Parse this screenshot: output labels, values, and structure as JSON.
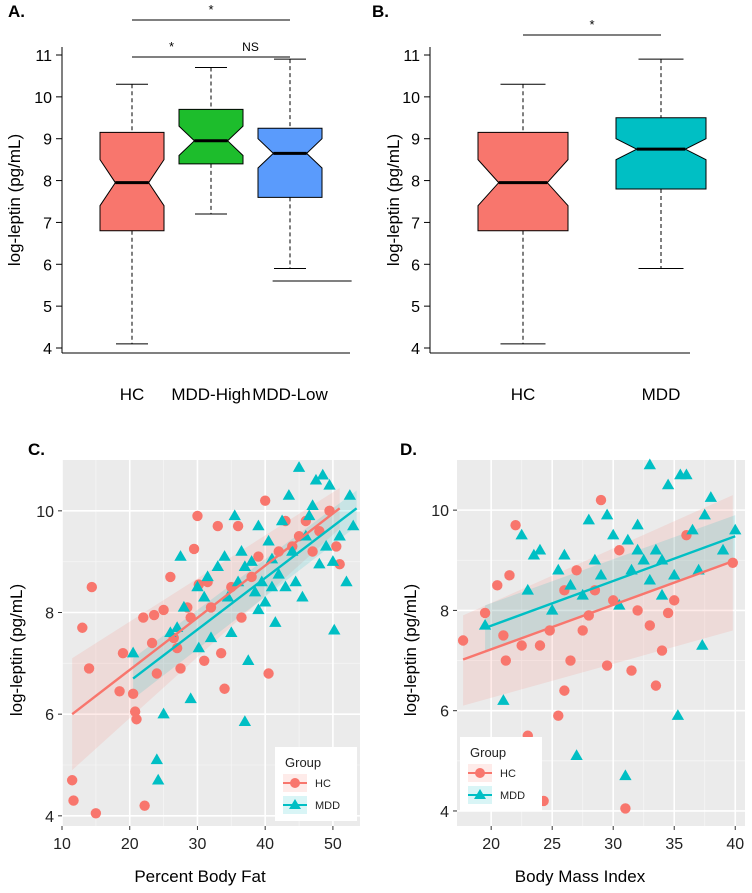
{
  "colors": {
    "hc": "#f8766d",
    "mdd_high": "#1dbd2c",
    "mdd_low": "#5a9bfc",
    "mdd": "#00bfc4",
    "panel_bg": "#ebebeb"
  },
  "chart_data": [
    {
      "panel": "A.",
      "type": "boxplot",
      "ylabel": "log-leptin (pg/mL)",
      "ylim": [
        4,
        11
      ],
      "yticks": [
        4,
        5,
        6,
        7,
        8,
        9,
        10,
        11
      ],
      "categories": [
        "HC",
        "MDD-High",
        "MDD-Low"
      ],
      "boxes": [
        {
          "name": "HC",
          "color": "#f8766d",
          "min": 4.1,
          "q1": 6.8,
          "median": 7.95,
          "q3": 9.15,
          "max": 10.3,
          "notch_lo": 7.4,
          "notch_hi": 8.5
        },
        {
          "name": "MDD-High",
          "color": "#1dbd2c",
          "min": 7.2,
          "q1": 8.4,
          "median": 8.95,
          "q3": 9.7,
          "max": 10.7,
          "notch_lo": 8.6,
          "notch_hi": 9.3
        },
        {
          "name": "MDD-Low",
          "color": "#5a9bfc",
          "min": 5.9,
          "q1": 7.6,
          "median": 8.65,
          "q3": 9.25,
          "max": 10.9,
          "notch_lo": 8.3,
          "notch_hi": 9.0
        }
      ],
      "extra_line": {
        "y": 5.6,
        "from": 1.78,
        "to": 2.78
      },
      "significance": [
        {
          "from": 0,
          "to": 1,
          "level": 1,
          "label": "*"
        },
        {
          "from": 1,
          "to": 2,
          "level": 1,
          "label": "NS"
        },
        {
          "from": 0,
          "to": 2,
          "level": 2,
          "label": "*"
        }
      ]
    },
    {
      "panel": "B.",
      "type": "boxplot",
      "ylabel": "log-leptin (pg/mL)",
      "ylim": [
        4,
        11
      ],
      "yticks": [
        4,
        5,
        6,
        7,
        8,
        9,
        10,
        11
      ],
      "categories": [
        "HC",
        "MDD"
      ],
      "boxes": [
        {
          "name": "HC",
          "color": "#f8766d",
          "min": 4.1,
          "q1": 6.8,
          "median": 7.95,
          "q3": 9.15,
          "max": 10.3,
          "notch_lo": 7.4,
          "notch_hi": 8.5
        },
        {
          "name": "MDD",
          "color": "#00bfc4",
          "min": 5.9,
          "q1": 7.8,
          "median": 8.75,
          "q3": 9.5,
          "max": 10.9,
          "notch_lo": 8.5,
          "notch_hi": 9.0
        }
      ],
      "significance": [
        {
          "from": 0,
          "to": 1,
          "level": 1,
          "label": "*"
        }
      ]
    },
    {
      "panel": "C.",
      "type": "scatter",
      "xlabel": "Percent Body Fat",
      "ylabel": "log-leptin (pg/mL)",
      "xlim": [
        10,
        54
      ],
      "ylim": [
        3.8,
        11
      ],
      "xticks": [
        10,
        20,
        30,
        40,
        50
      ],
      "yticks": [
        4,
        6,
        8,
        10
      ],
      "legend": {
        "title": "Group",
        "position": "bottom-right",
        "entries": [
          "HC",
          "MDD"
        ]
      },
      "series": [
        {
          "name": "HC",
          "color": "#f8766d",
          "marker": "circle",
          "points": [
            [
              11.5,
              4.7
            ],
            [
              11.7,
              4.3
            ],
            [
              13,
              7.7
            ],
            [
              14,
              6.9
            ],
            [
              14.4,
              8.5
            ],
            [
              15,
              4.05
            ],
            [
              18.5,
              6.45
            ],
            [
              19,
              7.2
            ],
            [
              20.5,
              6.4
            ],
            [
              20.8,
              6.05
            ],
            [
              21,
              5.9
            ],
            [
              22,
              7.9
            ],
            [
              22.2,
              4.2
            ],
            [
              23.3,
              7.4
            ],
            [
              23.6,
              7.95
            ],
            [
              24,
              6.8
            ],
            [
              25,
              8.05
            ],
            [
              26,
              8.7
            ],
            [
              26.5,
              7.5
            ],
            [
              27,
              7.3
            ],
            [
              27.5,
              6.9
            ],
            [
              28.5,
              8.1
            ],
            [
              29,
              7.9
            ],
            [
              29.5,
              9.25
            ],
            [
              30,
              9.9
            ],
            [
              30.2,
              8.55
            ],
            [
              31,
              7.05
            ],
            [
              31.5,
              8.6
            ],
            [
              32,
              8.1
            ],
            [
              33,
              9.7
            ],
            [
              33.5,
              7.2
            ],
            [
              34,
              6.5
            ],
            [
              35,
              8.5
            ],
            [
              36,
              9.7
            ],
            [
              36.5,
              7.9
            ],
            [
              38,
              8.7
            ],
            [
              39,
              9.1
            ],
            [
              40,
              10.2
            ],
            [
              40.5,
              6.8
            ],
            [
              42,
              9.2
            ],
            [
              43,
              9.8
            ],
            [
              44,
              9.3
            ],
            [
              45,
              9.5
            ],
            [
              46,
              9.8
            ],
            [
              47,
              9.2
            ],
            [
              48,
              9.6
            ],
            [
              49.5,
              10.0
            ],
            [
              50.5,
              9.3
            ],
            [
              51,
              8.95
            ]
          ],
          "fit": {
            "x": [
              11.5,
              51
            ],
            "y": [
              6.0,
              10.05
            ],
            "ci_lo": [
              4.9,
              9.65
            ],
            "ci_hi": [
              7.1,
              10.45
            ]
          }
        },
        {
          "name": "MDD",
          "color": "#00bfc4",
          "marker": "triangle",
          "points": [
            [
              20.5,
              7.2
            ],
            [
              24,
              5.1
            ],
            [
              24.2,
              4.7
            ],
            [
              25,
              6.0
            ],
            [
              26,
              7.6
            ],
            [
              27,
              7.7
            ],
            [
              27.5,
              9.1
            ],
            [
              28,
              8.1
            ],
            [
              29,
              6.3
            ],
            [
              30,
              8.5
            ],
            [
              30.2,
              7.3
            ],
            [
              31,
              8.3
            ],
            [
              31.5,
              8.7
            ],
            [
              32,
              7.5
            ],
            [
              33,
              8.9
            ],
            [
              34,
              9.1
            ],
            [
              34.5,
              8.3
            ],
            [
              35,
              7.6
            ],
            [
              35.5,
              9.9
            ],
            [
              36,
              8.6
            ],
            [
              36.5,
              9.2
            ],
            [
              37,
              5.85
            ],
            [
              37,
              8.9
            ],
            [
              37.5,
              7.05
            ],
            [
              38,
              9.0
            ],
            [
              38.5,
              8.4
            ],
            [
              39,
              9.7
            ],
            [
              39,
              8.05
            ],
            [
              39.5,
              8.6
            ],
            [
              40,
              8.2
            ],
            [
              40.5,
              9.4
            ],
            [
              41,
              8.5
            ],
            [
              41,
              9.05
            ],
            [
              41.5,
              7.8
            ],
            [
              42,
              8.75
            ],
            [
              42.5,
              9.8
            ],
            [
              43,
              8.5
            ],
            [
              43.5,
              10.3
            ],
            [
              44,
              9.2
            ],
            [
              44.5,
              8.6
            ],
            [
              45,
              10.85
            ],
            [
              45.5,
              8.3
            ],
            [
              46,
              9.5
            ],
            [
              46.5,
              9.9
            ],
            [
              47,
              10.1
            ],
            [
              47.5,
              10.6
            ],
            [
              48,
              8.95
            ],
            [
              48.5,
              10.7
            ],
            [
              49,
              9.3
            ],
            [
              49.5,
              10.5
            ],
            [
              50,
              9.0
            ],
            [
              50.2,
              7.65
            ],
            [
              51,
              9.5
            ],
            [
              52,
              8.6
            ],
            [
              53,
              9.7
            ],
            [
              52.5,
              10.3
            ]
          ],
          "fit": {
            "x": [
              20.5,
              53.5
            ],
            "y": [
              6.7,
              10.05
            ],
            "ci_lo": [
              6.3,
              9.7
            ],
            "ci_hi": [
              7.1,
              10.4
            ]
          }
        }
      ]
    },
    {
      "panel": "D.",
      "type": "scatter",
      "xlabel": "Body Mass Index",
      "ylabel": "log-leptin (pg/mL)",
      "xlim": [
        17.2,
        40.8
      ],
      "ylim": [
        3.7,
        11
      ],
      "xticks": [
        20,
        25,
        30,
        35,
        40
      ],
      "yticks": [
        4,
        6,
        8,
        10
      ],
      "legend": {
        "title": "Group",
        "position": "bottom-left",
        "entries": [
          "HC",
          "MDD"
        ]
      },
      "series": [
        {
          "name": "HC",
          "color": "#f8766d",
          "marker": "circle",
          "points": [
            [
              17.7,
              7.4
            ],
            [
              19.5,
              7.95
            ],
            [
              20.5,
              8.5
            ],
            [
              21,
              7.5
            ],
            [
              21.2,
              7.0
            ],
            [
              21.5,
              8.7
            ],
            [
              22,
              9.7
            ],
            [
              22.5,
              7.3
            ],
            [
              23,
              5.5
            ],
            [
              23.5,
              4.7
            ],
            [
              24,
              7.3
            ],
            [
              24.3,
              4.2
            ],
            [
              24.8,
              7.6
            ],
            [
              25.5,
              5.9
            ],
            [
              26,
              6.4
            ],
            [
              26,
              8.4
            ],
            [
              26.5,
              7.0
            ],
            [
              27,
              8.8
            ],
            [
              27.5,
              7.6
            ],
            [
              28,
              7.9
            ],
            [
              28.5,
              8.4
            ],
            [
              29,
              10.2
            ],
            [
              29.5,
              6.9
            ],
            [
              30,
              8.2
            ],
            [
              30.5,
              9.2
            ],
            [
              31,
              4.05
            ],
            [
              31.5,
              6.8
            ],
            [
              32,
              8.0
            ],
            [
              33,
              7.7
            ],
            [
              33.5,
              6.5
            ],
            [
              34,
              7.2
            ],
            [
              34.5,
              7.95
            ],
            [
              35,
              8.2
            ],
            [
              36,
              9.5
            ],
            [
              39.8,
              8.95
            ]
          ],
          "fit": {
            "x": [
              17.7,
              39.8
            ],
            "y": [
              7.02,
              8.98
            ],
            "ci_lo": [
              6.1,
              7.6
            ],
            "ci_hi": [
              7.9,
              10.3
            ]
          }
        },
        {
          "name": "MDD",
          "color": "#00bfc4",
          "marker": "triangle",
          "points": [
            [
              19.5,
              7.7
            ],
            [
              21,
              6.2
            ],
            [
              22.5,
              9.5
            ],
            [
              23,
              8.4
            ],
            [
              23.5,
              9.1
            ],
            [
              24,
              9.2
            ],
            [
              25,
              8.0
            ],
            [
              25.5,
              8.8
            ],
            [
              26,
              9.1
            ],
            [
              26.5,
              8.5
            ],
            [
              27,
              5.1
            ],
            [
              27.5,
              8.3
            ],
            [
              28,
              9.8
            ],
            [
              28.5,
              9.0
            ],
            [
              29,
              8.7
            ],
            [
              29.5,
              9.9
            ],
            [
              30,
              9.5
            ],
            [
              30.5,
              8.1
            ],
            [
              31,
              4.7
            ],
            [
              31.2,
              9.4
            ],
            [
              31.5,
              8.8
            ],
            [
              32,
              9.7
            ],
            [
              32.5,
              9.0
            ],
            [
              33,
              10.9
            ],
            [
              33.5,
              9.2
            ],
            [
              34,
              9.0
            ],
            [
              34.5,
              10.5
            ],
            [
              35,
              8.7
            ],
            [
              35.3,
              5.9
            ],
            [
              35.5,
              10.7
            ],
            [
              36,
              10.7
            ],
            [
              36.5,
              9.6
            ],
            [
              37,
              8.8
            ],
            [
              37.3,
              7.3
            ],
            [
              38,
              10.25
            ],
            [
              39,
              9.2
            ],
            [
              40,
              9.6
            ],
            [
              37.5,
              9.9
            ],
            [
              34,
              8.3
            ],
            [
              33,
              8.6
            ],
            [
              32,
              9.2
            ]
          ],
          "fit": {
            "x": [
              19.5,
              40
            ],
            "y": [
              7.65,
              9.48
            ],
            "ci_lo": [
              7.2,
              9.0
            ],
            "ci_hi": [
              8.1,
              9.9
            ]
          }
        }
      ]
    }
  ]
}
